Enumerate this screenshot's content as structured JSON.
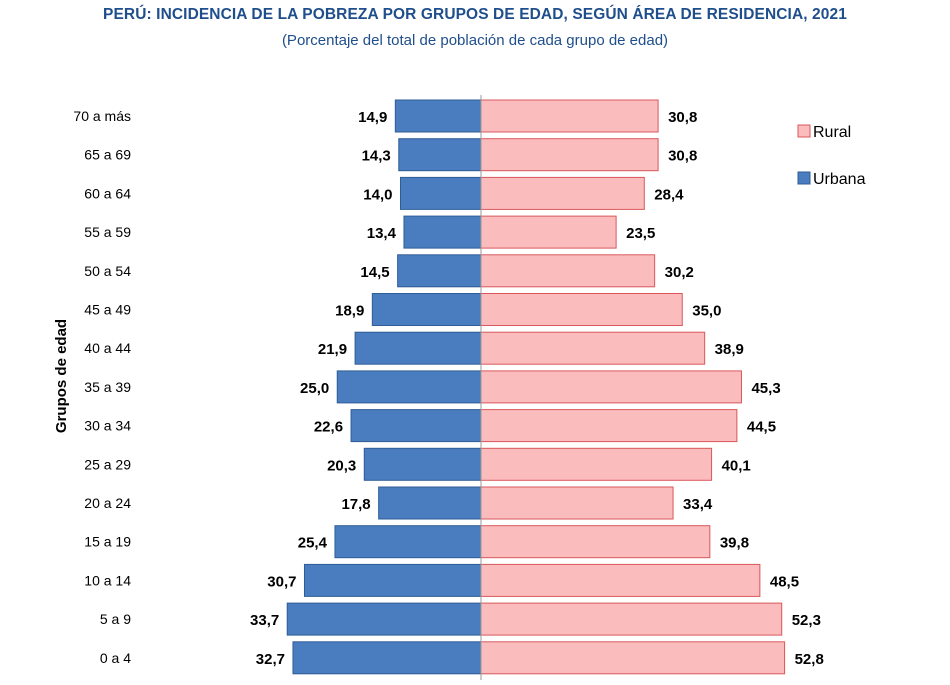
{
  "header": {
    "title": "PERÚ: INCIDENCIA DE LA POBREZA POR GRUPOS DE EDAD, SEGÚN ÁREA DE RESIDENCIA, 2021",
    "subtitle": "(Porcentaje del total de población de cada grupo de edad)"
  },
  "chart_data": {
    "type": "bar",
    "orientation": "horizontal-pyramid",
    "title": "PERÚ: INCIDENCIA DE LA POBREZA POR GRUPOS DE EDAD, SEGÚN ÁREA DE RESIDENCIA, 2021",
    "subtitle": "(Porcentaje del total de población de cada grupo de edad)",
    "ylabel": "Grupos de edad",
    "xlabel": "",
    "categories": [
      "70 a más",
      "65 a 69",
      "60 a 64",
      "55 a 59",
      "50 a 54",
      "45 a 49",
      "40 a 44",
      "35 a 39",
      "30 a 34",
      "25 a 29",
      "20 a 24",
      "15 a 19",
      "10 a 14",
      "5 a 9",
      "0 a 4"
    ],
    "series": [
      {
        "name": "Urbana",
        "side": "left",
        "color": "#4a7dbf",
        "values": [
          14.9,
          14.3,
          14.0,
          13.4,
          14.5,
          18.9,
          21.9,
          25.0,
          22.6,
          20.3,
          17.8,
          25.4,
          30.7,
          33.7,
          32.7
        ],
        "labels": [
          "14,9",
          "14,3",
          "14,0",
          "13,4",
          "14,5",
          "18,9",
          "21,9",
          "25,0",
          "22,6",
          "20,3",
          "17,8",
          "25,4",
          "30,7",
          "33,7",
          "32,7"
        ]
      },
      {
        "name": "Rural",
        "side": "right",
        "color": "#fbbcbd",
        "values": [
          30.8,
          30.8,
          28.4,
          23.5,
          30.2,
          35.0,
          38.9,
          45.3,
          44.5,
          40.1,
          33.4,
          39.8,
          48.5,
          52.3,
          52.8
        ],
        "labels": [
          "30,8",
          "30,8",
          "28,4",
          "23,5",
          "30,2",
          "35,0",
          "38,9",
          "45,3",
          "44,5",
          "40,1",
          "33,4",
          "39,8",
          "48,5",
          "52,3",
          "52,8"
        ]
      }
    ],
    "legend": {
      "position": "top-right",
      "items": [
        {
          "name": "Rural",
          "color": "#fbbcbd"
        },
        {
          "name": "Urbana",
          "color": "#4a7dbf"
        }
      ]
    },
    "grid": false
  }
}
